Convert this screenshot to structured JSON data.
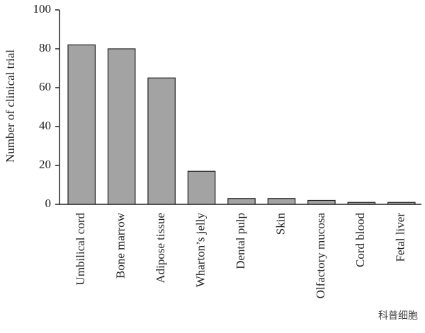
{
  "chart_data": {
    "type": "bar",
    "y_label": "Number of clinical trial",
    "categories": [
      "Umbilical cord",
      "Bone marrow",
      "Adipose tissue",
      "Wharton’s jelly",
      "Dental pulp",
      "Skin",
      "Olfactory mucosa",
      "Cord blood",
      "Fetal liver"
    ],
    "values": [
      82,
      80,
      65,
      17,
      3,
      3,
      2,
      1,
      1
    ],
    "color": "#a3a3a3",
    "ylim": [
      0,
      100
    ],
    "yticks": [
      0,
      20,
      40,
      60,
      80,
      100
    ],
    "grid": false,
    "watermark": "科普细胞"
  }
}
